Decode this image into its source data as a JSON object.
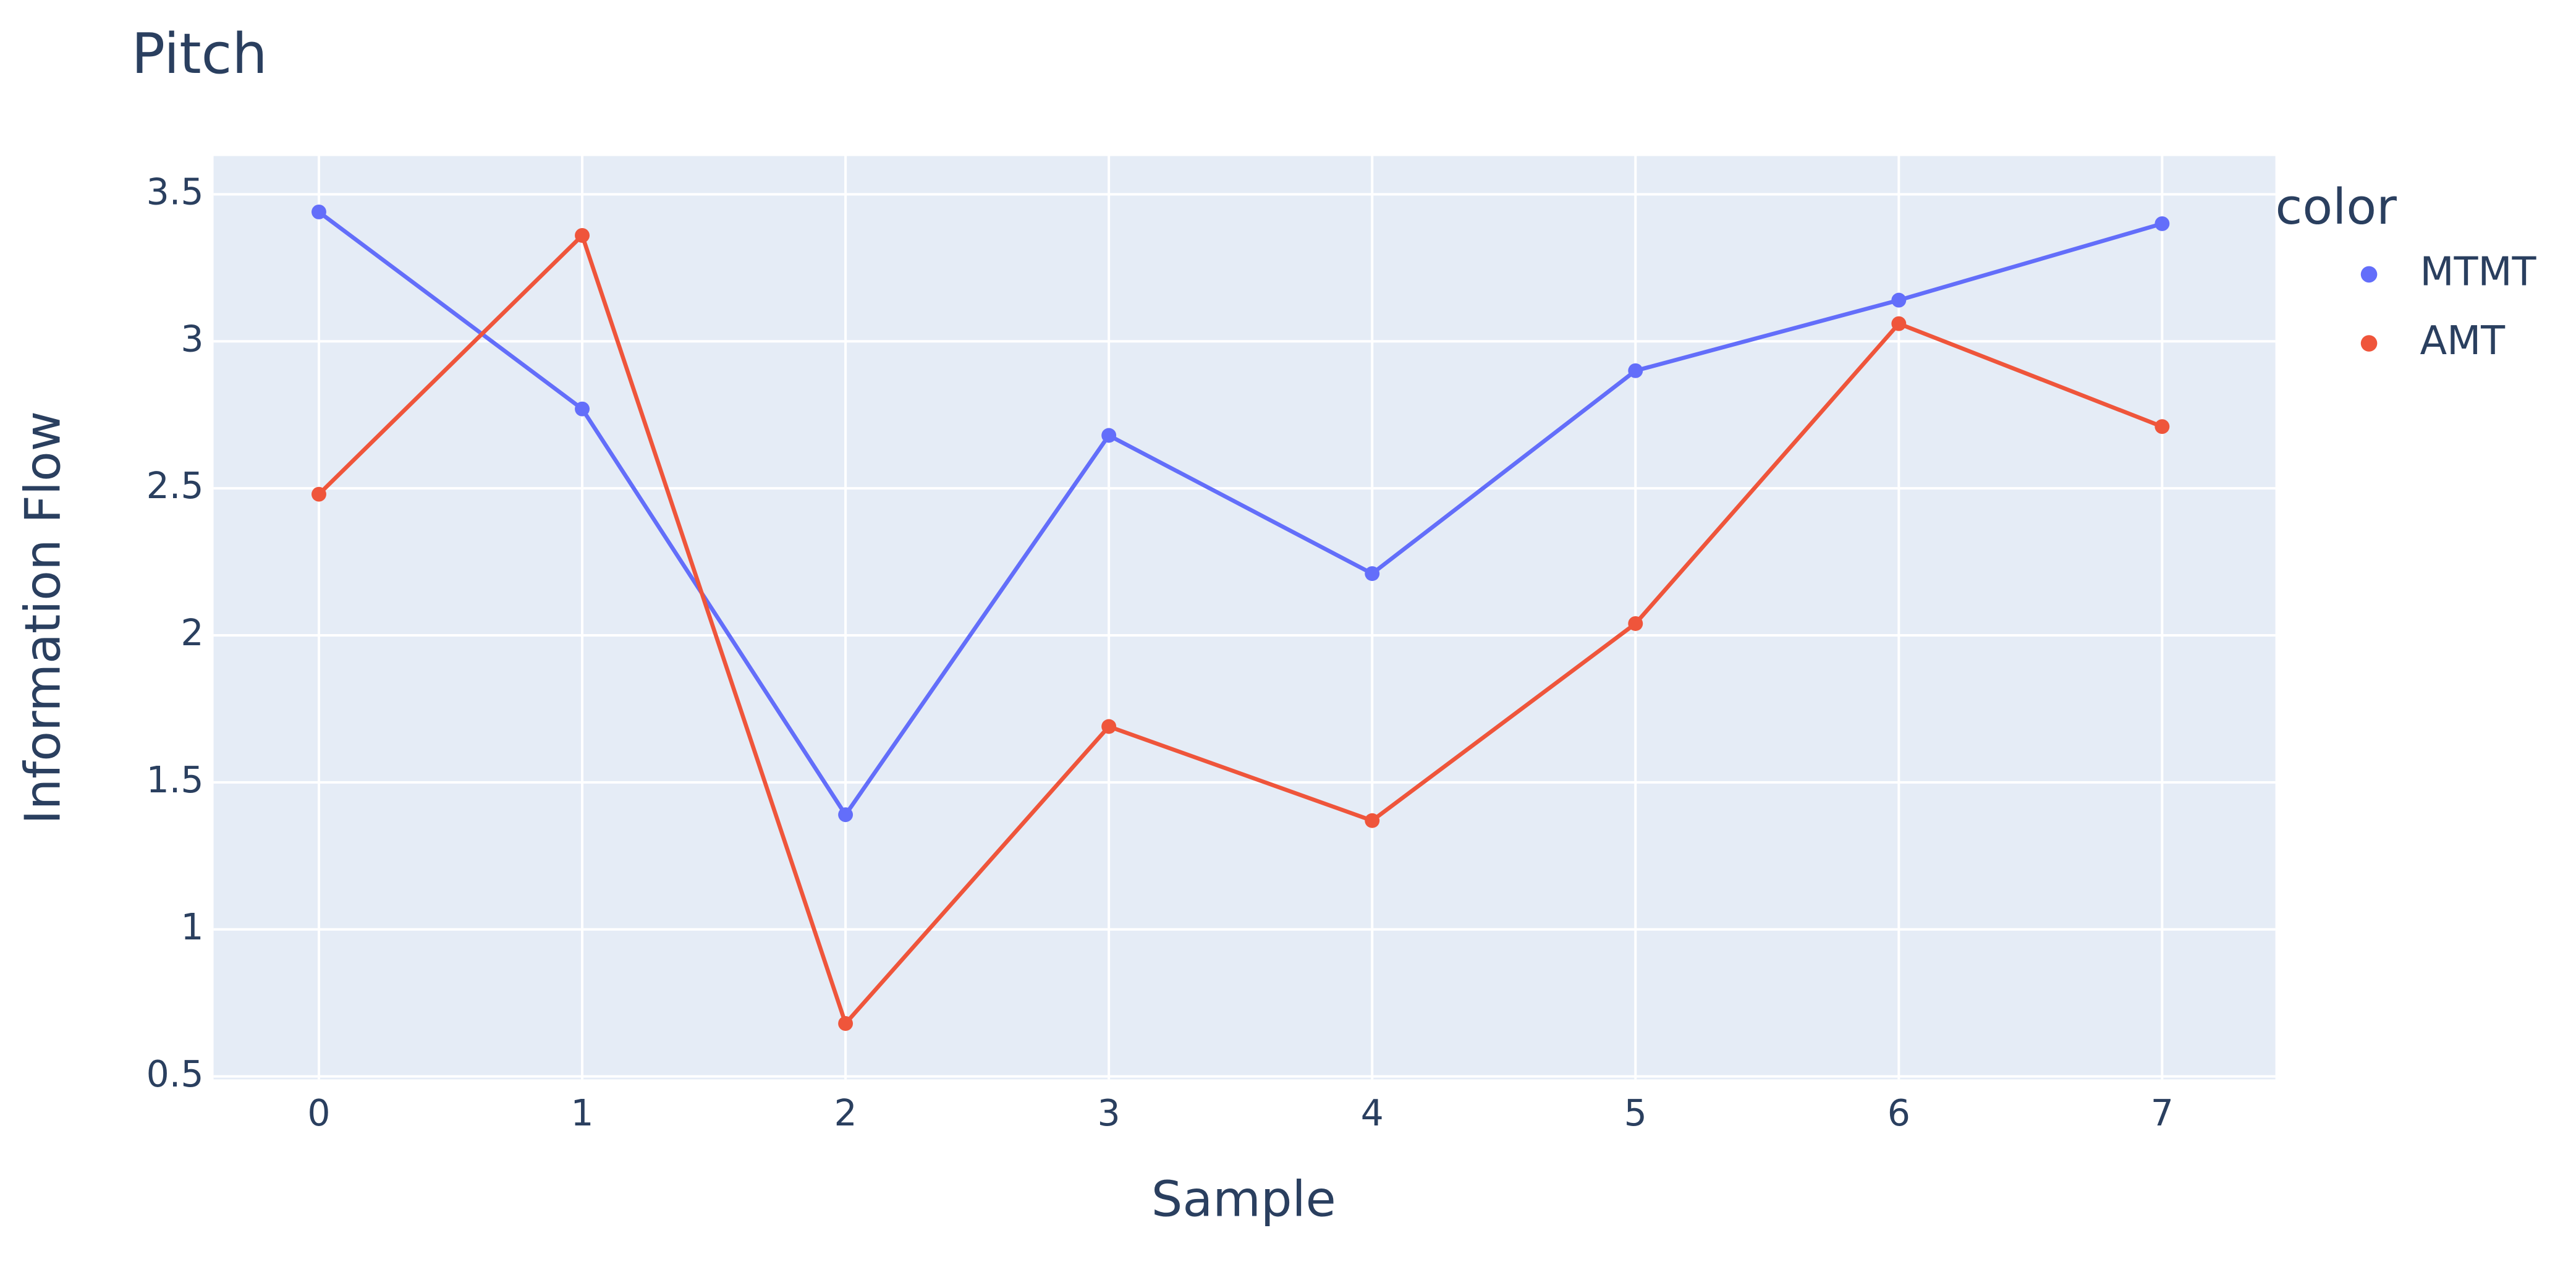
{
  "chart_data": {
    "type": "line",
    "title": "Pitch",
    "x_label": "Sample",
    "y_label": "Information Flow",
    "legend_title": "color",
    "legend_position": "right",
    "x": [
      0,
      1,
      2,
      3,
      4,
      5,
      6,
      7
    ],
    "series": [
      {
        "name": "MTMT",
        "color": "#636efa",
        "values": [
          3.44,
          2.77,
          1.39,
          2.68,
          2.21,
          2.9,
          3.14,
          3.4
        ]
      },
      {
        "name": "AMT",
        "color": "#ef553b",
        "values": [
          2.48,
          3.36,
          0.68,
          1.69,
          1.37,
          2.04,
          3.06,
          2.71
        ]
      }
    ],
    "xlim": [
      -0.4,
      7.43
    ],
    "ylim": [
      0.49,
      3.63
    ],
    "xticks": [
      0,
      1,
      2,
      3,
      4,
      5,
      6,
      7
    ],
    "yticks": [
      0.5,
      1,
      1.5,
      2,
      2.5,
      3,
      3.5
    ],
    "grid": true,
    "markers": true,
    "plot_background": "#e5ecf6"
  }
}
